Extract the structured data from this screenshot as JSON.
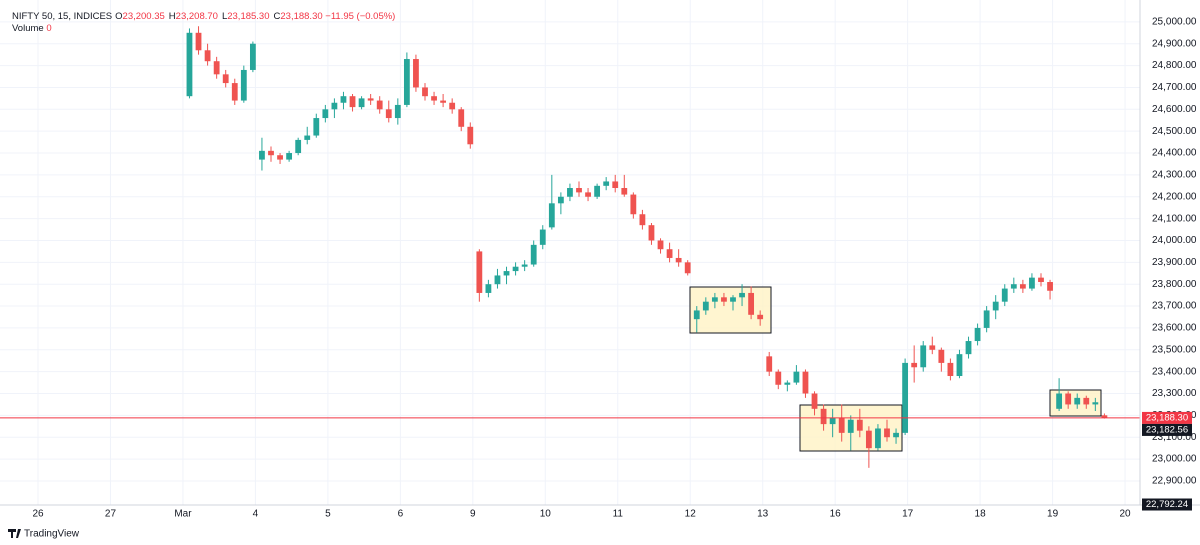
{
  "header": {
    "symbol": "NIFTY 50, 15, INDICES",
    "quote": [
      {
        "key": "O",
        "value": "23,200.35"
      },
      {
        "key": "H",
        "value": "23,208.70"
      },
      {
        "key": "L",
        "value": "23,185.30"
      },
      {
        "key": "C",
        "value": "23,188.30"
      }
    ],
    "change": "−11.95 (−0.05%)",
    "volume_label": "Volume",
    "volume_value": "0"
  },
  "footer": {
    "brand": "TradingView"
  },
  "chart_data": {
    "type": "candlestick",
    "up_color": "#26a69a",
    "down_color": "#ef5350",
    "grid": true,
    "categories": [
      "26",
      "27",
      "Mar",
      "4",
      "5",
      "6",
      "9",
      "10",
      "11",
      "12",
      "13",
      "16",
      "17",
      "18",
      "19",
      "20"
    ],
    "candles": [
      null,
      null,
      {
        "open": [
          24660,
          24950,
          24870,
          24820,
          24760,
          24720,
          24640,
          24780
        ],
        "high": [
          24970,
          24980,
          24900,
          24840,
          24780,
          24740,
          24800,
          24910
        ],
        "low": [
          24650,
          24850,
          24800,
          24740,
          24700,
          24620,
          24630,
          24770
        ],
        "close": [
          24950,
          24870,
          24820,
          24760,
          24720,
          24640,
          24780,
          24900
        ]
      },
      {
        "open": [
          24370,
          24410,
          24390,
          24370,
          24400,
          24460,
          24480,
          24560
        ],
        "high": [
          24470,
          24430,
          24400,
          24410,
          24470,
          24520,
          24580,
          24620
        ],
        "low": [
          24320,
          24360,
          24350,
          24360,
          24390,
          24440,
          24470,
          24540
        ],
        "close": [
          24410,
          24390,
          24370,
          24400,
          24460,
          24480,
          24560,
          24600
        ]
      },
      {
        "open": [
          24600,
          24630,
          24660,
          24610,
          24650,
          24640,
          24600,
          24560
        ],
        "high": [
          24650,
          24680,
          24670,
          24660,
          24670,
          24660,
          24640,
          24650
        ],
        "low": [
          24560,
          24600,
          24590,
          24600,
          24620,
          24580,
          24540,
          24530
        ],
        "close": [
          24630,
          24660,
          24610,
          24650,
          24640,
          24600,
          24560,
          24620
        ]
      },
      {
        "open": [
          24620,
          24830,
          24700,
          24660,
          24640,
          24630,
          24600,
          24520
        ],
        "high": [
          24860,
          24850,
          24720,
          24680,
          24670,
          24650,
          24610,
          24540
        ],
        "low": [
          24610,
          24680,
          24640,
          24620,
          24610,
          24580,
          24500,
          24420
        ],
        "close": [
          24830,
          24700,
          24660,
          24640,
          24630,
          24600,
          24520,
          24440
        ]
      },
      {
        "open": [
          23950,
          23760,
          23800,
          23840,
          23860,
          23880,
          23890,
          23980
        ],
        "high": [
          23960,
          23820,
          23870,
          23880,
          23900,
          23910,
          24000,
          24070
        ],
        "low": [
          23720,
          23740,
          23780,
          23800,
          23840,
          23860,
          23880,
          23960
        ],
        "close": [
          23760,
          23800,
          23840,
          23860,
          23880,
          23890,
          23980,
          24050
        ]
      },
      {
        "open": [
          24060,
          24170,
          24200,
          24240,
          24220,
          24200,
          24250,
          24270
        ],
        "high": [
          24300,
          24220,
          24260,
          24270,
          24240,
          24260,
          24290,
          24300
        ],
        "low": [
          24050,
          24120,
          24180,
          24200,
          24180,
          24190,
          24230,
          24220
        ],
        "close": [
          24170,
          24200,
          24240,
          24220,
          24200,
          24250,
          24270,
          24240
        ]
      },
      {
        "open": [
          24240,
          24210,
          24120,
          24070,
          24000,
          23960,
          23920,
          23900
        ],
        "high": [
          24300,
          24220,
          24140,
          24080,
          24010,
          23990,
          23960,
          23910
        ],
        "low": [
          24200,
          24100,
          24050,
          23980,
          23940,
          23900,
          23880,
          23840
        ],
        "close": [
          24210,
          24120,
          24070,
          24000,
          23960,
          23920,
          23900,
          23850
        ]
      },
      {
        "open": [
          23640,
          23680,
          23720,
          23740,
          23720,
          23740,
          23760,
          23660
        ],
        "high": [
          23700,
          23740,
          23760,
          23760,
          23750,
          23800,
          23790,
          23680
        ],
        "low": [
          23580,
          23660,
          23690,
          23700,
          23680,
          23700,
          23640,
          23610
        ],
        "close": [
          23680,
          23720,
          23740,
          23720,
          23740,
          23760,
          23660,
          23640
        ]
      },
      {
        "open": [
          23470,
          23400,
          23340,
          23350,
          23400,
          23300,
          23230,
          23160
        ],
        "high": [
          23490,
          23410,
          23360,
          23430,
          23410,
          23310,
          23250,
          23230
        ],
        "low": [
          23380,
          23320,
          23310,
          23340,
          23280,
          23200,
          23130,
          23100
        ],
        "close": [
          23400,
          23340,
          23350,
          23400,
          23300,
          23230,
          23160,
          23190
        ]
      },
      {
        "open": [
          23190,
          23120,
          23180,
          23130,
          23050,
          23140,
          23100,
          23120
        ],
        "high": [
          23250,
          23200,
          23230,
          23150,
          23160,
          23180,
          23140,
          23460
        ],
        "low": [
          23080,
          23040,
          23100,
          22960,
          23040,
          23080,
          23070,
          23110
        ],
        "close": [
          23120,
          23180,
          23130,
          23050,
          23140,
          23100,
          23120,
          23440
        ]
      },
      {
        "open": [
          23440,
          23420,
          23520,
          23500,
          23440,
          23380,
          23480,
          23540
        ],
        "high": [
          23520,
          23540,
          23560,
          23510,
          23460,
          23500,
          23560,
          23620
        ],
        "low": [
          23350,
          23400,
          23480,
          23400,
          23360,
          23370,
          23460,
          23520
        ],
        "close": [
          23420,
          23520,
          23500,
          23440,
          23380,
          23480,
          23540,
          23600
        ]
      },
      {
        "open": [
          23600,
          23680,
          23720,
          23780,
          23800,
          23780,
          23830,
          23810
        ],
        "high": [
          23700,
          23750,
          23800,
          23830,
          23820,
          23850,
          23850,
          23820
        ],
        "low": [
          23580,
          23640,
          23700,
          23760,
          23760,
          23770,
          23790,
          23730
        ],
        "close": [
          23680,
          23720,
          23780,
          23800,
          23780,
          23830,
          23810,
          23770
        ]
      },
      {
        "open": [
          23230,
          23300,
          23250,
          23280,
          23250,
          23200.35
        ],
        "high": [
          23370,
          23310,
          23300,
          23290,
          23280,
          23208.7
        ],
        "low": [
          23220,
          23230,
          23230,
          23230,
          23220,
          23185.3
        ],
        "close": [
          23300,
          23250,
          23280,
          23250,
          23260,
          23188.3
        ]
      },
      null
    ],
    "ylim": [
      22790,
      25100
    ],
    "yticks": [
      {
        "value": 22900,
        "label": "22,900.00"
      },
      {
        "value": 23000,
        "label": "23,000.00"
      },
      {
        "value": 23100,
        "label": "23,100.00"
      },
      {
        "value": 23200,
        "label": "23,200.00"
      },
      {
        "value": 23300,
        "label": "23,300.00"
      },
      {
        "value": 23400,
        "label": "23,400.00"
      },
      {
        "value": 23500,
        "label": "23,500.00"
      },
      {
        "value": 23600,
        "label": "23,600.00"
      },
      {
        "value": 23700,
        "label": "23,700.00"
      },
      {
        "value": 23800,
        "label": "23,800.00"
      },
      {
        "value": 23900,
        "label": "23,900.00"
      },
      {
        "value": 24000,
        "label": "24,000.00"
      },
      {
        "value": 24100,
        "label": "24,100.00"
      },
      {
        "value": 24200,
        "label": "24,200.00"
      },
      {
        "value": 24300,
        "label": "24,300.00"
      },
      {
        "value": 24400,
        "label": "24,400.00"
      },
      {
        "value": 24500,
        "label": "24,500.00"
      },
      {
        "value": 24600,
        "label": "24,600.00"
      },
      {
        "value": 24700,
        "label": "24,700.00"
      },
      {
        "value": 24800,
        "label": "24,800.00"
      },
      {
        "value": 24900,
        "label": "24,900.00"
      },
      {
        "value": 25000,
        "label": "25,000.00"
      }
    ],
    "price_marks": [
      {
        "value": 23188.3,
        "label": "23,188.30",
        "color": "#f23645",
        "line": true
      },
      {
        "value": 23182.56,
        "label": "23,182.56",
        "color": "#131722",
        "line": false
      },
      {
        "value": 22792.24,
        "label": "22,792.24",
        "color": "#131722",
        "line": false
      }
    ]
  }
}
